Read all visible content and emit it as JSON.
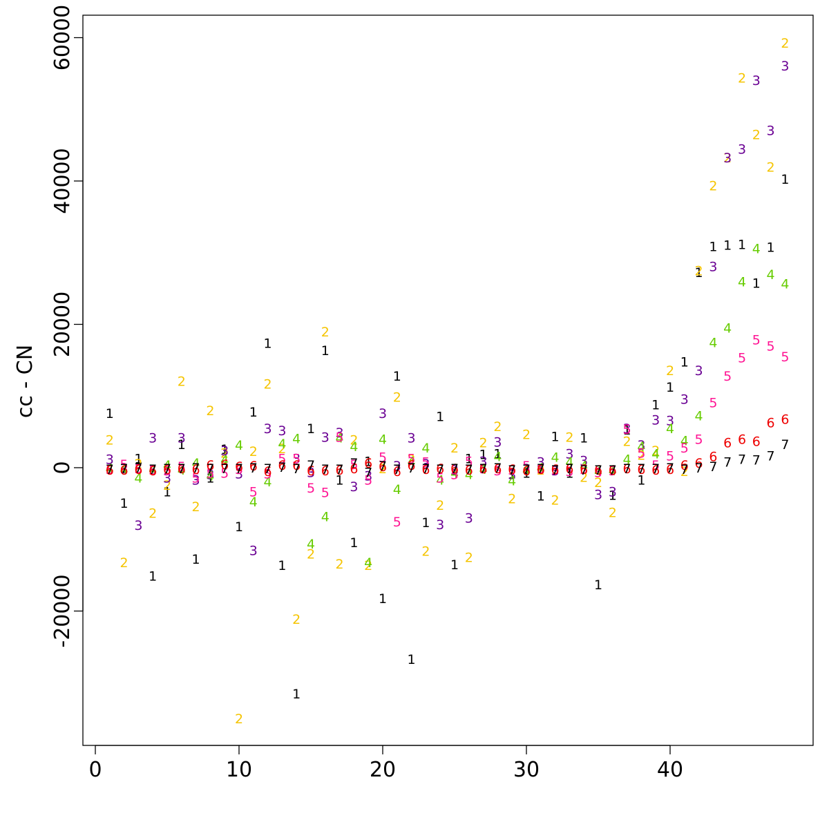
{
  "chart_data": {
    "type": "scatter",
    "title": "",
    "xlabel": "",
    "ylabel": "cc - CN",
    "xlim": [
      0,
      50
    ],
    "ylim": [
      -40000,
      60000
    ],
    "xticks": [
      0,
      10,
      20,
      30,
      40
    ],
    "yticks": [
      -20000,
      0,
      20000,
      40000,
      60000
    ],
    "x_tick_labels": [
      "0",
      "10",
      "20",
      "30",
      "40"
    ],
    "y_tick_labels": [
      "-20000",
      "0",
      "20000",
      "40000",
      "60000"
    ],
    "grid": false,
    "legend": "none",
    "marker": "series symbol digit",
    "x": [
      1,
      2,
      3,
      4,
      5,
      6,
      7,
      8,
      9,
      10,
      11,
      12,
      13,
      14,
      15,
      16,
      17,
      18,
      19,
      20,
      21,
      22,
      23,
      24,
      25,
      26,
      27,
      28,
      29,
      30,
      31,
      32,
      33,
      34,
      35,
      36,
      37,
      38,
      39,
      40,
      41,
      42,
      43,
      44,
      45,
      46,
      47,
      48
    ],
    "series": [
      {
        "symbol": "1",
        "color": "#000000",
        "values": [
          7500,
          -5000,
          1200,
          -15200,
          -3400,
          3200,
          -12800,
          -1500,
          2500,
          -8300,
          7700,
          17300,
          -13700,
          -31600,
          5400,
          16300,
          -1800,
          -10500,
          800,
          -18300,
          12700,
          -26800,
          -7700,
          7100,
          -13600,
          1200,
          1800,
          1900,
          -900,
          -800,
          -4000,
          4300,
          -800,
          4100,
          -16400,
          -3900,
          5200,
          -1800,
          8700,
          11200,
          14700,
          27200,
          30800,
          31000,
          31100,
          25700,
          30700,
          40200
        ]
      },
      {
        "symbol": "2",
        "color": "#F5C400",
        "values": [
          3800,
          -13300,
          500,
          -6400,
          -2500,
          12000,
          -5500,
          7900,
          2000,
          -35100,
          2200,
          11600,
          2600,
          -21200,
          -12100,
          18900,
          -13500,
          3800,
          -13700,
          -200,
          9800,
          1100,
          -11700,
          -5300,
          2700,
          -12600,
          3400,
          5700,
          -4400,
          4600,
          -400,
          -4600,
          4200,
          -1400,
          -2100,
          -6300,
          3600,
          1700,
          2300,
          13500,
          -600,
          27400,
          39300,
          43200,
          54300,
          46400,
          41900,
          59200
        ]
      },
      {
        "symbol": "3",
        "color": "#6A0093",
        "values": [
          1100,
          -200,
          -8100,
          4100,
          -1500,
          4100,
          -1800,
          -1000,
          2300,
          -900,
          -11600,
          5400,
          5100,
          1200,
          -700,
          4200,
          4800,
          -2700,
          -1200,
          7500,
          200,
          4100,
          500,
          -8000,
          -400,
          -7100,
          800,
          3500,
          -1000,
          -200,
          700,
          -500,
          1900,
          900,
          -3800,
          -3400,
          5400,
          3100,
          6600,
          6500,
          9500,
          13500,
          28000,
          43200,
          44400,
          54000,
          47000,
          56000
        ]
      },
      {
        "symbol": "4",
        "color": "#66CC00",
        "values": [
          -200,
          -300,
          -1500,
          -300,
          300,
          -400,
          600,
          -1200,
          1000,
          3100,
          -4800,
          -2000,
          3300,
          4000,
          -10700,
          -6900,
          4100,
          2900,
          -13300,
          3900,
          -3100,
          800,
          2700,
          -1800,
          -800,
          -1000,
          -300,
          1500,
          -1900,
          -400,
          -100,
          1400,
          700,
          200,
          -600,
          -500,
          1100,
          2900,
          1900,
          5400,
          3700,
          7200,
          17400,
          19400,
          25900,
          30500,
          26900,
          25600
        ]
      },
      {
        "symbol": "5",
        "color": "#FF1493",
        "values": [
          -300,
          400,
          -200,
          -400,
          -500,
          100,
          -1500,
          -800,
          -800,
          -300,
          -3400,
          -900,
          1200,
          1200,
          -2900,
          -3500,
          4200,
          400,
          -1800,
          1400,
          -7600,
          1200,
          700,
          -1500,
          -1000,
          800,
          -200,
          -500,
          -400,
          200,
          -200,
          -400,
          -600,
          -300,
          -700,
          -500,
          5300,
          2000,
          300,
          1600,
          2700,
          3900,
          9000,
          12700,
          15300,
          17800,
          16900,
          15400
        ]
      },
      {
        "symbol": "6",
        "color": "#EE0000",
        "values": [
          -400,
          -400,
          -300,
          -500,
          -300,
          -200,
          -300,
          300,
          400,
          100,
          200,
          -600,
          300,
          300,
          -500,
          -500,
          -400,
          -200,
          600,
          100,
          -600,
          300,
          -300,
          -200,
          -200,
          -400,
          -200,
          -200,
          -300,
          -500,
          -300,
          -300,
          -200,
          -300,
          -400,
          -400,
          -200,
          -300,
          -400,
          -300,
          300,
          600,
          1500,
          3400,
          3900,
          3600,
          6200,
          6700
        ]
      },
      {
        "symbol": "7",
        "color": "#000000",
        "values": [
          -300,
          -200,
          -100,
          -300,
          -200,
          -200,
          -100,
          -200,
          -200,
          -200,
          -100,
          -200,
          0,
          -200,
          300,
          -300,
          -300,
          600,
          -700,
          200,
          -300,
          -100,
          -200,
          -300,
          -200,
          -300,
          -200,
          -100,
          -400,
          -300,
          -200,
          -400,
          -200,
          -400,
          -400,
          -400,
          -200,
          -200,
          -200,
          -100,
          -300,
          -100,
          100,
          700,
          1100,
          1000,
          1600,
          3200
        ]
      }
    ]
  }
}
